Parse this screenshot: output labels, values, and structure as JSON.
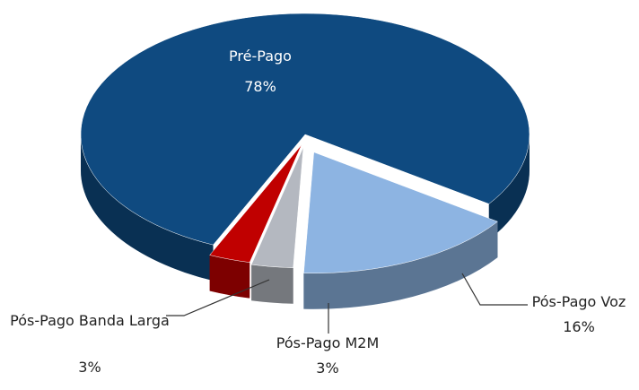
{
  "chart_data": {
    "type": "pie",
    "categories": [
      "Pré-Pago",
      "Pós-Pago Voz",
      "Pós-Pago M2M",
      "Pós-Pago Banda Larga"
    ],
    "values": [
      78,
      16,
      3,
      3
    ],
    "value_labels": [
      "78%",
      "16%",
      "3%",
      "3%"
    ],
    "colors": [
      "#0f4a80",
      "#8db4e2",
      "#b4b8c0",
      "#c00000"
    ]
  }
}
